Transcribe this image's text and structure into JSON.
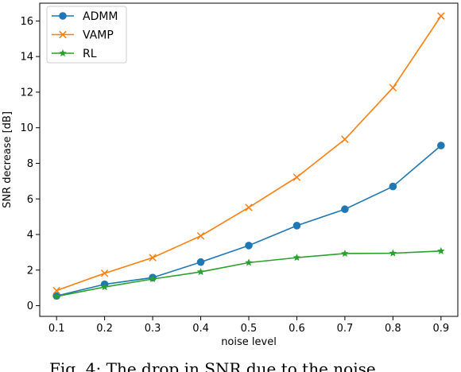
{
  "caption": "Fig. 4: The drop in SNR due to the noise",
  "chart_data": {
    "type": "line",
    "xlabel": "noise level",
    "ylabel": "SNR decrease [dB]",
    "xlim": [
      0.065,
      0.935
    ],
    "ylim": [
      -0.6,
      17.0
    ],
    "x": [
      0.1,
      0.2,
      0.3,
      0.4,
      0.5,
      0.6,
      0.7,
      0.8,
      0.9
    ],
    "xticks": [
      "0.1",
      "0.2",
      "0.3",
      "0.4",
      "0.5",
      "0.6",
      "0.7",
      "0.8",
      "0.9"
    ],
    "yticks": [
      "0",
      "2",
      "4",
      "6",
      "8",
      "10",
      "12",
      "14",
      "16"
    ],
    "grid": false,
    "legend_position": "top-left",
    "series": [
      {
        "name": "ADMM",
        "color": "#1f77b4",
        "marker": "circle",
        "values": [
          0.55,
          1.2,
          1.58,
          2.45,
          3.38,
          4.5,
          5.42,
          6.7,
          9.0
        ]
      },
      {
        "name": "VAMP",
        "color": "#ff7f0e",
        "marker": "x",
        "values": [
          0.85,
          1.82,
          2.7,
          3.92,
          5.52,
          7.22,
          9.35,
          12.25,
          16.28
        ]
      },
      {
        "name": "RL",
        "color": "#2ca02c",
        "marker": "star",
        "values": [
          0.52,
          1.05,
          1.5,
          1.9,
          2.42,
          2.7,
          2.93,
          2.95,
          3.07
        ]
      }
    ]
  }
}
